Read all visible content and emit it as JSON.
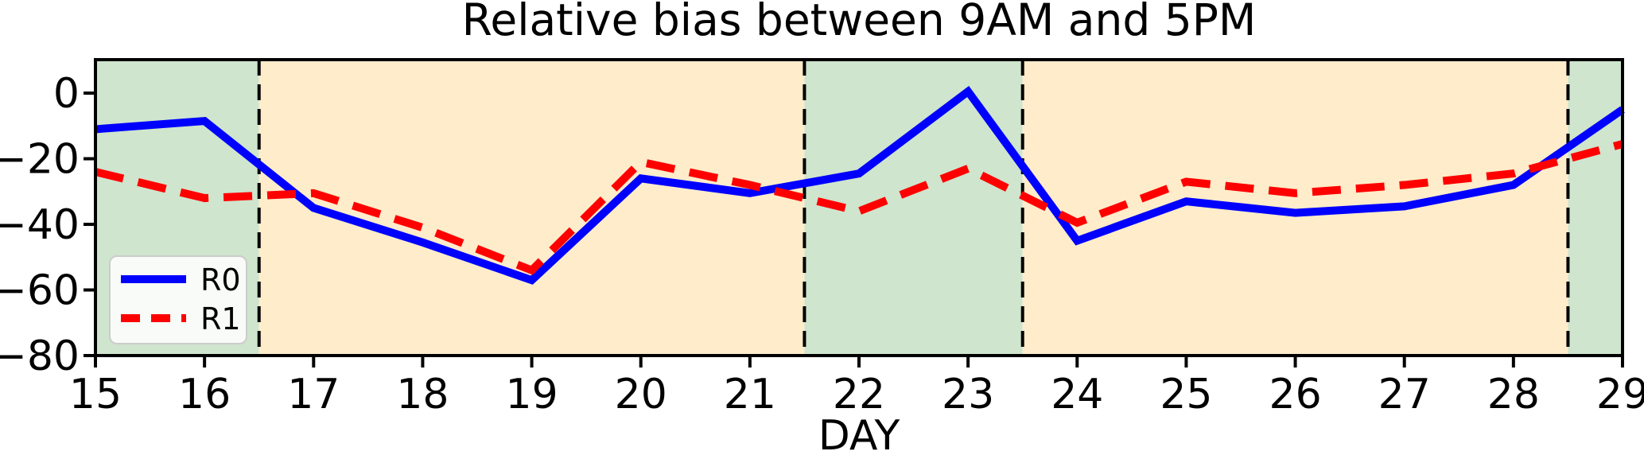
{
  "chart_data": {
    "type": "line",
    "title": "Relative bias between 9AM and 5PM",
    "xlabel": "DAY",
    "ylabel": "",
    "x": [
      15,
      16,
      17,
      18,
      19,
      20,
      21,
      22,
      23,
      24,
      25,
      26,
      27,
      28,
      29
    ],
    "xlim": [
      15,
      29
    ],
    "ylim": [
      -80,
      10.2
    ],
    "xtick_labels": [
      "15",
      "16",
      "17",
      "18",
      "19",
      "20",
      "21",
      "22",
      "23",
      "24",
      "25",
      "26",
      "27",
      "28",
      "29"
    ],
    "yticks": [
      0,
      -20,
      -40,
      -60,
      -80
    ],
    "ytick_labels": [
      "0",
      "−20",
      "−40",
      "−60",
      "−80"
    ],
    "grid": false,
    "series": [
      {
        "name": "R0",
        "color": "#0000ff",
        "style": "solid",
        "values": [
          -11,
          -8.5,
          -35,
          -45.5,
          -57,
          -26,
          -30.5,
          -24.5,
          0.5,
          -45,
          -33,
          -36.5,
          -34.5,
          -28,
          -5
        ]
      },
      {
        "name": "R1",
        "color": "#ff0000",
        "style": "dashed",
        "values": [
          -24,
          -32,
          -30.5,
          -41,
          -54,
          -21,
          -28,
          -36,
          -23,
          -39.5,
          -27,
          -30.5,
          -28,
          -24.5,
          -15.5
        ]
      }
    ],
    "regions": [
      {
        "from": 15,
        "to": 16.5,
        "color": "#cfe5cd",
        "label": "green-shade"
      },
      {
        "from": 16.5,
        "to": 21.5,
        "color": "#feecca",
        "label": "orange-shade"
      },
      {
        "from": 21.5,
        "to": 23.5,
        "color": "#cfe5cd",
        "label": "green-shade"
      },
      {
        "from": 23.5,
        "to": 28.5,
        "color": "#feecca",
        "label": "orange-shade"
      },
      {
        "from": 28.5,
        "to": 29,
        "color": "#cfe5cd",
        "label": "green-shade"
      }
    ],
    "vlines": {
      "x": [
        16.5,
        21.5,
        23.5,
        28.5
      ],
      "color": "#000000",
      "style": "dashed"
    },
    "legend": {
      "position": "lower left"
    }
  }
}
